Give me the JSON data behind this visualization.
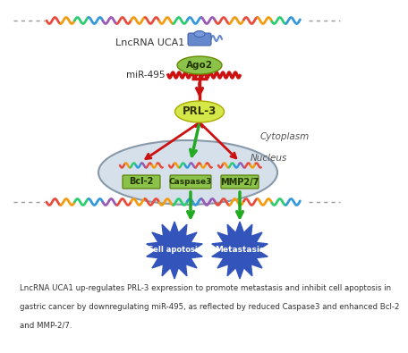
{
  "bg_color": "#ffffff",
  "caption": "LncRNA UCA1 up-regulates PRL-3 expression to promote metastasis and inhibit cell apoptosis in\n\ngastric cancer by downregulating miR-495, as reflected by reduced Caspase3 and enhanced Bcl-2\n\nand MMP-2/7.",
  "caption_fontsize": 6.2,
  "ago2_color": "#8bc34a",
  "ago2_text": "Ago2",
  "lncrna_text": "LncRNA UCA1",
  "mir_text": "miR-495",
  "prl3_text": "PRL-3",
  "prl3_color": "#d4e84a",
  "cytoplasm_text": "Cytoplasm",
  "nucleus_text": "Nucleus",
  "bcl2_text": "Bcl-2",
  "caspase_text": "Caspase3",
  "mmp_text": "MMP2/7",
  "gene_box_color": "#8bc34a",
  "inhibit_color": "#cc1111",
  "activate_color": "#22aa22",
  "star_color": "#3355bb",
  "cell_apoptosis_text": "Cell apotosis",
  "metastasis_text": "Metastasis",
  "star_text_color": "#ffffff",
  "rna_colors": [
    "#e74c3c",
    "#f39c12",
    "#2ecc71",
    "#3498db",
    "#9b59b6",
    "#e74c3c",
    "#f39c12"
  ]
}
